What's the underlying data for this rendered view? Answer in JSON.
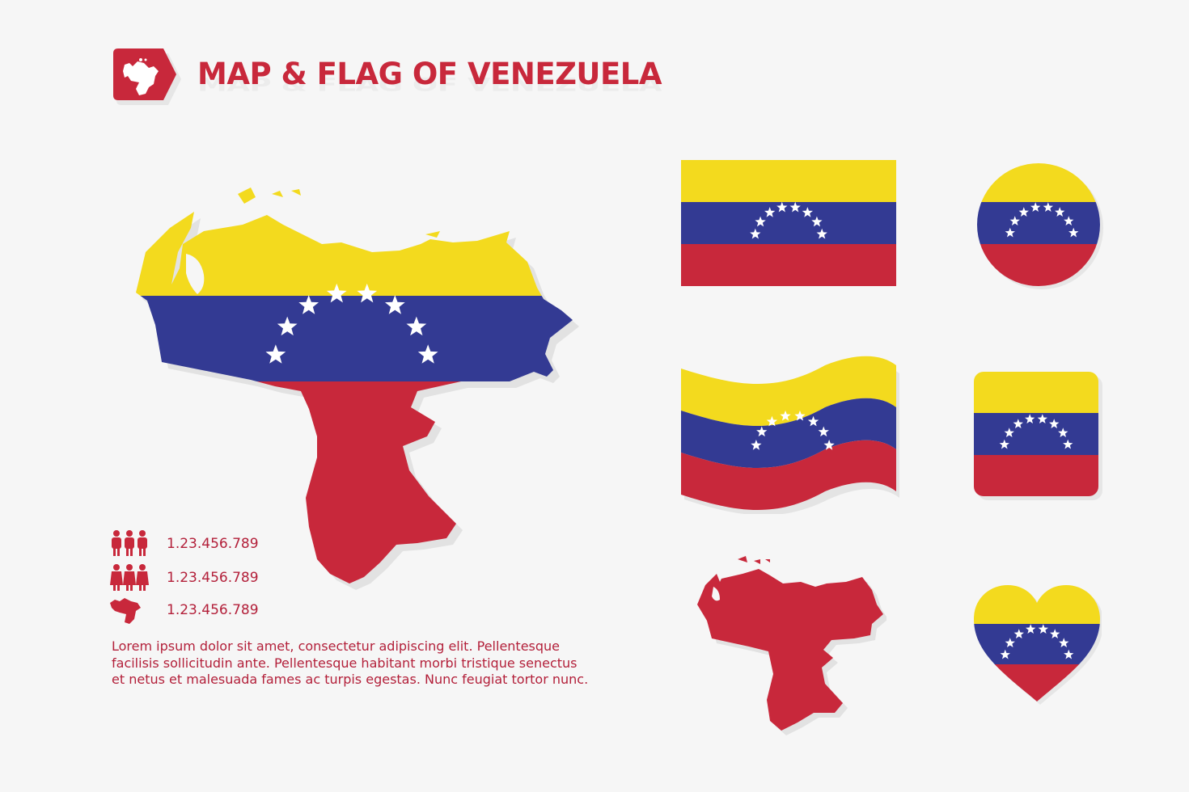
{
  "header": {
    "title": "MAP & FLAG OF VENEZUELA",
    "badge_icon": "venezuela-map-icon"
  },
  "colors": {
    "yellow": "#f3da1e",
    "blue": "#333a93",
    "red": "#c8283b",
    "star": "#ffffff",
    "text": "#b3203a"
  },
  "stats": [
    {
      "icon": "people-icon",
      "value": "1.23.456.789"
    },
    {
      "icon": "people-icon",
      "value": "1.23.456.789"
    },
    {
      "icon": "map-icon",
      "value": "1.23.456.789"
    }
  ],
  "description": "Lorem ipsum dolor sit amet, consectetur adipiscing elit. Pellentesque facilisis sollicitudin ante. Pellentesque habitant morbi tristique senectus et netus et malesuada fames ac turpis egestas. Nunc feugiat tortor nunc.",
  "flag_variants": [
    "rectangle",
    "circle",
    "waving",
    "rounded-square",
    "map-silhouette",
    "heart"
  ]
}
